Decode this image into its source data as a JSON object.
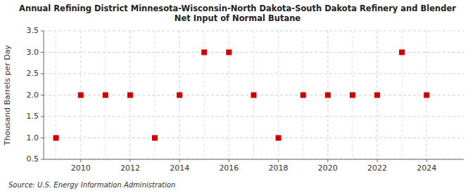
{
  "chart_data": {
    "type": "scatter",
    "title": "Annual Refining District Minnesota-Wisconsin-North Dakota-South Dakota Refinery and Blender\nNet Input of Normal Butane",
    "y_label": "Thousand Barrels per Day",
    "source": "Source: U.S. Energy Information Administration",
    "x": [
      2009,
      2010,
      2011,
      2012,
      2013,
      2014,
      2015,
      2016,
      2017,
      2018,
      2019,
      2020,
      2021,
      2022,
      2023,
      2024
    ],
    "values": [
      1.0,
      2.0,
      2.0,
      2.0,
      1.0,
      2.0,
      3.0,
      3.0,
      2.0,
      1.0,
      2.0,
      2.0,
      2.0,
      2.0,
      3.0,
      2.0
    ],
    "color": "#cc0000",
    "marker": "square",
    "xlim": [
      2008.5,
      2025.5
    ],
    "xticks": [
      2010,
      2012,
      2014,
      2016,
      2018,
      2020,
      2022,
      2024
    ],
    "ylim": [
      0.5,
      3.5
    ],
    "yticks": [
      0.5,
      {
        "value": 1.0,
        "label": "1.0"
      },
      1.5,
      {
        "value": 2.0,
        "label": "2.0"
      },
      2.5,
      {
        "value": 3.0,
        "label": "3.0"
      },
      3.5
    ],
    "grid": true
  }
}
